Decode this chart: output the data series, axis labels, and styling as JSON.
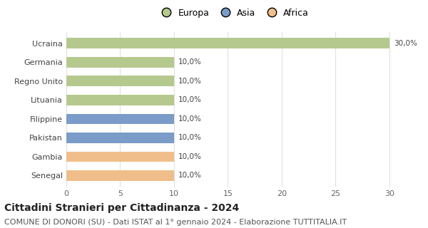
{
  "categories": [
    "Ucraina",
    "Germania",
    "Regno Unito",
    "Lituania",
    "Filippine",
    "Pakistan",
    "Gambia",
    "Senegal"
  ],
  "values": [
    30.0,
    10.0,
    10.0,
    10.0,
    10.0,
    10.0,
    10.0,
    10.0
  ],
  "labels": [
    "30,0%",
    "10,0%",
    "10,0%",
    "10,0%",
    "10,0%",
    "10,0%",
    "10,0%",
    "10,0%"
  ],
  "colors": [
    "#b5c98e",
    "#b5c98e",
    "#b5c98e",
    "#b5c98e",
    "#7b9bc8",
    "#7b9bc8",
    "#f0be8a",
    "#f0be8a"
  ],
  "legend_labels": [
    "Europa",
    "Asia",
    "Africa"
  ],
  "legend_colors": [
    "#b5c98e",
    "#7b9bc8",
    "#f0be8a"
  ],
  "xlim": [
    0,
    31
  ],
  "xticks": [
    0,
    5,
    10,
    15,
    20,
    25,
    30
  ],
  "title": "Cittadini Stranieri per Cittadinanza - 2024",
  "subtitle": "COMUNE DI DONORI (SU) - Dati ISTAT al 1° gennaio 2024 - Elaborazione TUTTITALIA.IT",
  "title_fontsize": 10,
  "subtitle_fontsize": 8,
  "label_fontsize": 7.5,
  "tick_fontsize": 8,
  "legend_fontsize": 9,
  "background_color": "#ffffff",
  "grid_color": "#e0e0e0",
  "bar_height": 0.55
}
